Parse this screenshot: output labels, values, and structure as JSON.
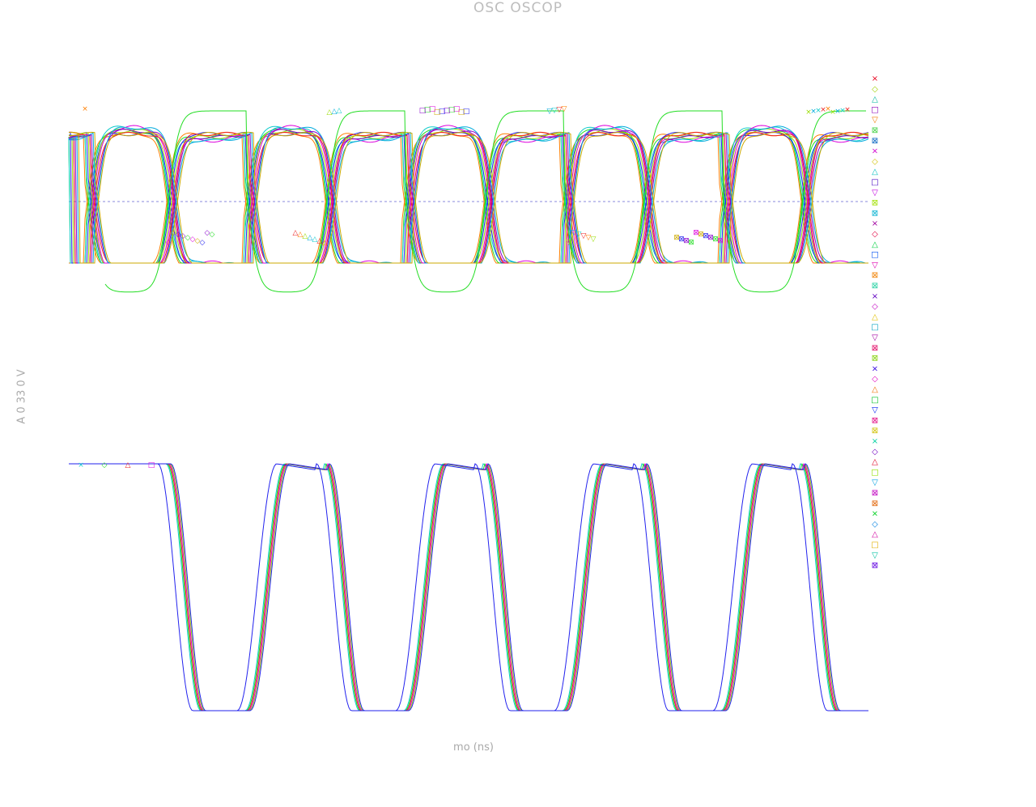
{
  "chart_data": {
    "type": "line",
    "title": "OSC  OSCOP",
    "xlabel": "mo (ns)",
    "ylabel": "A  0 33  0 V",
    "grid": false,
    "legend": "right",
    "reference_line": "dashed horizontal line at the midpoint of the upper panel",
    "colors": {
      "orange": "#ff7f00",
      "green": "#22dd22",
      "blue": "#2222ee",
      "cyan": "#11cccc",
      "lime": "#99dd00",
      "magenta": "#dd00dd",
      "red": "#ee2222",
      "purple": "#8800cc"
    },
    "legend_markers": [
      {
        "symbol": "×",
        "color": "#e8001c"
      },
      {
        "symbol": "◇",
        "color": "#a0d000"
      },
      {
        "symbol": "△",
        "color": "#00b8a0"
      },
      {
        "symbol": "□",
        "color": "#8a00b8"
      },
      {
        "symbol": "▽",
        "color": "#f07800"
      },
      {
        "symbol": "⊠",
        "color": "#40d040"
      },
      {
        "symbol": "⊠",
        "color": "#0060c0"
      },
      {
        "symbol": "×",
        "color": "#d000d0"
      },
      {
        "symbol": "◇",
        "color": "#d0c000"
      },
      {
        "symbol": "△",
        "color": "#00c0c0"
      },
      {
        "symbol": "□",
        "color": "#4000c0"
      },
      {
        "symbol": "▽",
        "color": "#c000e0"
      },
      {
        "symbol": "⊠",
        "color": "#a0e000"
      },
      {
        "symbol": "⊠",
        "color": "#00b0d0"
      },
      {
        "symbol": "×",
        "color": "#a000a0"
      },
      {
        "symbol": "◇",
        "color": "#e00040"
      },
      {
        "symbol": "△",
        "color": "#00d040"
      },
      {
        "symbol": "□",
        "color": "#0050f0"
      },
      {
        "symbol": "▽",
        "color": "#e000b0"
      },
      {
        "symbol": "⊠",
        "color": "#f08000"
      },
      {
        "symbol": "⊠",
        "color": "#20d0a0"
      },
      {
        "symbol": "×",
        "color": "#6000c0"
      },
      {
        "symbol": "◇",
        "color": "#c000c0"
      },
      {
        "symbol": "△",
        "color": "#e0c000"
      },
      {
        "symbol": "□",
        "color": "#00a0c0"
      },
      {
        "symbol": "▽",
        "color": "#a000a0"
      },
      {
        "symbol": "⊠",
        "color": "#e00060"
      },
      {
        "symbol": "⊠",
        "color": "#80d000"
      },
      {
        "symbol": "×",
        "color": "#3000e0"
      },
      {
        "symbol": "◇",
        "color": "#e000c0"
      },
      {
        "symbol": "△",
        "color": "#f07000"
      },
      {
        "symbol": "□",
        "color": "#00c020"
      },
      {
        "symbol": "▽",
        "color": "#0020f0"
      },
      {
        "symbol": "⊠",
        "color": "#e00080"
      },
      {
        "symbol": "⊠",
        "color": "#d0c000"
      },
      {
        "symbol": "×",
        "color": "#00d0a0"
      },
      {
        "symbol": "◇",
        "color": "#7000c0"
      },
      {
        "symbol": "△",
        "color": "#e00020"
      },
      {
        "symbol": "□",
        "color": "#90e000"
      },
      {
        "symbol": "▽",
        "color": "#00a0e0"
      },
      {
        "symbol": "⊠",
        "color": "#c000c0"
      },
      {
        "symbol": "⊠",
        "color": "#e06000"
      },
      {
        "symbol": "×",
        "color": "#00d020"
      },
      {
        "symbol": "◇",
        "color": "#0080e0"
      },
      {
        "symbol": "△",
        "color": "#d000a0"
      },
      {
        "symbol": "□",
        "color": "#e0b000"
      },
      {
        "symbol": "▽",
        "color": "#00c0a0"
      },
      {
        "symbol": "⊠",
        "color": "#6000e0"
      }
    ],
    "panels": [
      {
        "name": "upper",
        "y_range": [
          -1,
          1
        ],
        "series": [
          {
            "color": "#ff7f00",
            "x": [
              0,
              0.05,
              0.5,
              1,
              1.5,
              2,
              2.5,
              3,
              3.5,
              4,
              4.5,
              5,
              5.5,
              6,
              6.5,
              7,
              7.5,
              8,
              8.5,
              9,
              9.5,
              10
            ],
            "y": [
              1,
              1,
              -0.9,
              1,
              -0.9,
              1,
              -0.9,
              1,
              -0.9,
              1,
              -0.9,
              1,
              -0.9,
              1,
              -0.9,
              1,
              -0.9,
              1,
              -0.9,
              1,
              -0.9,
              1
            ]
          },
          {
            "color": "#22dd22",
            "x": [
              0,
              0.05,
              0.5,
              1,
              1.5,
              2,
              2.5,
              3,
              3.5,
              4,
              4.5,
              5,
              5.5,
              6,
              6.5,
              7,
              7.5,
              8,
              8.5,
              9,
              9.5,
              10
            ],
            "y": [
              -1,
              -1,
              0.85,
              -0.9,
              0.85,
              -0.9,
              0.85,
              -0.9,
              0.85,
              -0.9,
              0.85,
              -0.9,
              0.85,
              -0.9,
              0.85,
              -0.9,
              0.85,
              -0.9,
              0.85,
              -0.9,
              0.85,
              -0.9
            ]
          }
        ]
      },
      {
        "name": "lower",
        "y_range": [
          -1,
          1
        ],
        "series": [
          {
            "color": "#11cccc",
            "periods": 4.5,
            "start_flat": 1
          },
          {
            "color": "#2222ee",
            "periods": 4.5,
            "start_flat": 1,
            "phase_lead": true
          }
        ]
      }
    ]
  }
}
